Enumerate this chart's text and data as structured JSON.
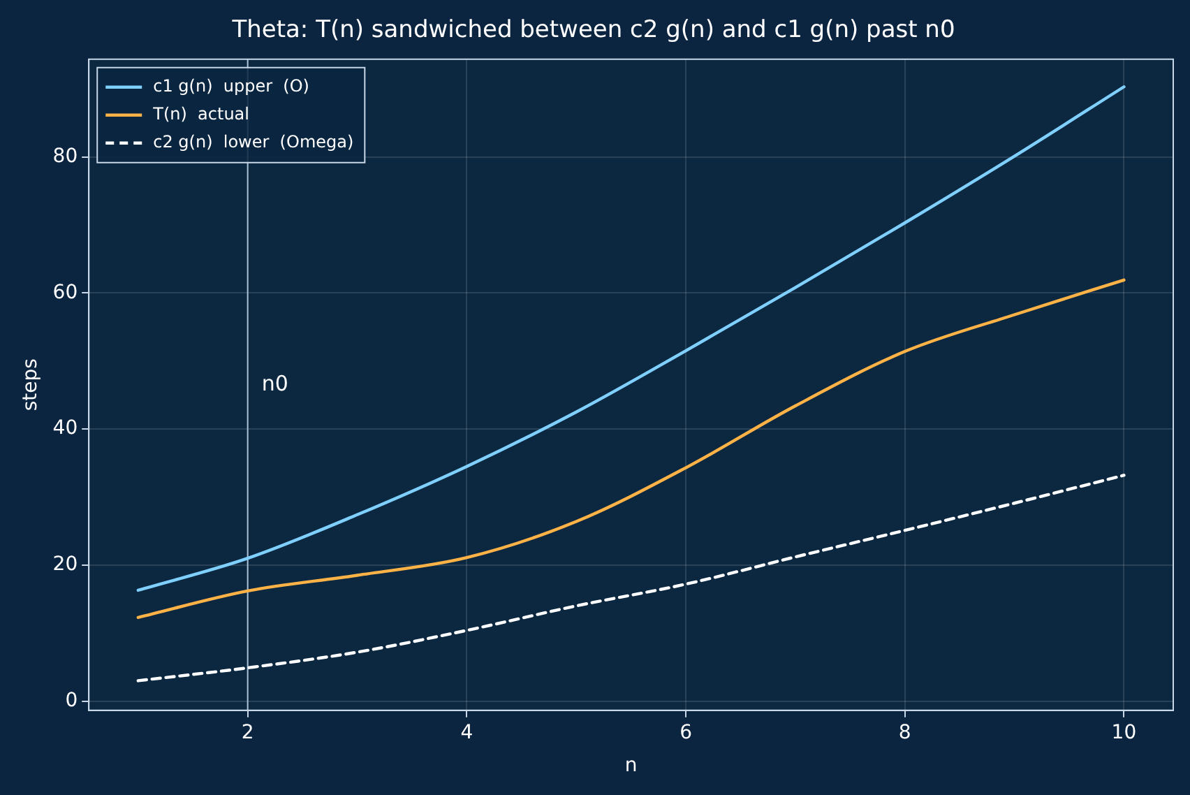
{
  "chart_data": {
    "type": "line",
    "title": "Theta: T(n) sandwiched between c2 g(n) and c1 g(n) past n0",
    "xlabel": "n",
    "ylabel": "steps",
    "x": [
      1,
      2,
      3,
      4,
      5,
      6,
      7,
      8,
      9,
      10
    ],
    "series": [
      {
        "name": "c1 g(n)  upper  (O)",
        "color": "#7fd0ff",
        "line_style": "solid",
        "values": [
          16.3,
          21,
          27.4,
          34.5,
          42.5,
          51.5,
          60.8,
          70.3,
          80.1,
          90.3
        ]
      },
      {
        "name": "T(n)  actual",
        "color": "#ffb347",
        "line_style": "solid",
        "values": [
          12.3,
          16.2,
          18.5,
          21.1,
          26.4,
          34.3,
          43.4,
          51.4,
          56.8,
          61.9
        ]
      },
      {
        "name": "c2 g(n)  lower  (Omega)",
        "color": "#ffffff",
        "line_style": "dashed",
        "values": [
          3,
          4.9,
          7.2,
          10.4,
          14,
          17.2,
          21.2,
          25.1,
          29.1,
          33.2
        ]
      }
    ],
    "xlim": [
      0.55,
      10.45
    ],
    "xticks": [
      2,
      4,
      6,
      8,
      10
    ],
    "ylim": [
      -1.35,
      94.35
    ],
    "yticks": [
      0,
      20,
      40,
      60,
      80
    ],
    "ref_lines": [
      {
        "axis": "x",
        "value": 2,
        "color": "#a8bfd4",
        "label": "n0"
      }
    ],
    "grid": true,
    "legend": "top left",
    "marker": "none"
  }
}
